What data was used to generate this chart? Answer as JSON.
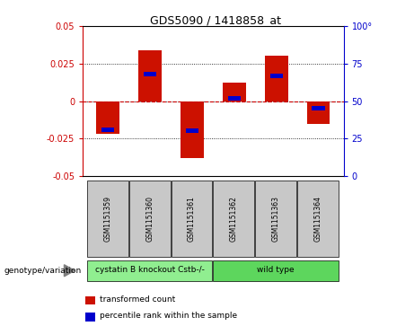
{
  "title": "GDS5090 / 1418858_at",
  "samples": [
    "GSM1151359",
    "GSM1151360",
    "GSM1151361",
    "GSM1151362",
    "GSM1151363",
    "GSM1151364"
  ],
  "red_bar_values": [
    -0.022,
    0.034,
    -0.038,
    0.012,
    0.03,
    -0.015
  ],
  "blue_marker_values": [
    -0.019,
    0.018,
    -0.02,
    0.002,
    0.017,
    -0.005
  ],
  "ylim_left": [
    -0.05,
    0.05
  ],
  "ylim_right": [
    0,
    100
  ],
  "yticks_left": [
    -0.05,
    -0.025,
    0,
    0.025,
    0.05
  ],
  "yticks_right": [
    0,
    25,
    50,
    75,
    100
  ],
  "groups": [
    {
      "label": "cystatin B knockout Cstb-/-",
      "indices": [
        0,
        1,
        2
      ],
      "color": "#90ee90"
    },
    {
      "label": "wild type",
      "indices": [
        3,
        4,
        5
      ],
      "color": "#5dd65d"
    }
  ],
  "left_axis_color": "#cc0000",
  "right_axis_color": "#0000cc",
  "zero_line_color": "#cc0000",
  "bar_color": "#cc1100",
  "marker_color": "#0000cc",
  "bg_color": "#ffffff",
  "plot_bg": "#ffffff",
  "tick_label_bg": "#c8c8c8",
  "legend_red_label": "transformed count",
  "legend_blue_label": "percentile rank within the sample",
  "genotype_label": "genotype/variation",
  "bar_width": 0.55
}
